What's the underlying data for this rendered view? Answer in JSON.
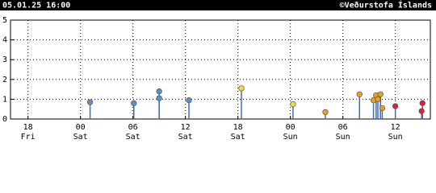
{
  "chart_data": {
    "type": "stem",
    "title": "05.01.25 16:00",
    "credit": "©Veðurstofa Íslands",
    "xlim": [
      0,
      48
    ],
    "xticks": [
      {
        "value": 2,
        "label": "18"
      },
      {
        "value": 8,
        "label": "00"
      },
      {
        "value": 14,
        "label": "06"
      },
      {
        "value": 20,
        "label": "12"
      },
      {
        "value": 26,
        "label": "18"
      },
      {
        "value": 32,
        "label": "00"
      },
      {
        "value": 38,
        "label": "06"
      },
      {
        "value": 44,
        "label": "12"
      }
    ],
    "xtick_days": [
      "Fri",
      "Sat",
      "Sat",
      "Sat",
      "Sat",
      "Sun",
      "Sun",
      "Sun"
    ],
    "ylim": [
      0,
      5
    ],
    "yticks": [
      0,
      1,
      2,
      3,
      4,
      5
    ],
    "grid": true,
    "stem_color": "#3a6fc0",
    "x": [
      9.1,
      14.1,
      17.0,
      17.0,
      20.4,
      26.4,
      32.3,
      36.0,
      39.9,
      41.5,
      41.8,
      42.0,
      42.3,
      42.5,
      44.0,
      47.0,
      47.1
    ],
    "values": [
      0.85,
      0.8,
      1.05,
      1.4,
      0.95,
      1.55,
      0.75,
      0.35,
      1.25,
      0.95,
      1.2,
      1.0,
      1.25,
      0.55,
      0.65,
      0.4,
      0.8
    ],
    "colors": [
      "#5b8fd0",
      "#5b8fd0",
      "#5b8fd0",
      "#5b8fd0",
      "#5b8fd0",
      "#f2e030",
      "#f2e030",
      "#e8a020",
      "#e8a020",
      "#e8a020",
      "#e8a020",
      "#e8a020",
      "#e8a020",
      "#e8a020",
      "#e02030",
      "#e02030",
      "#e02030"
    ]
  }
}
